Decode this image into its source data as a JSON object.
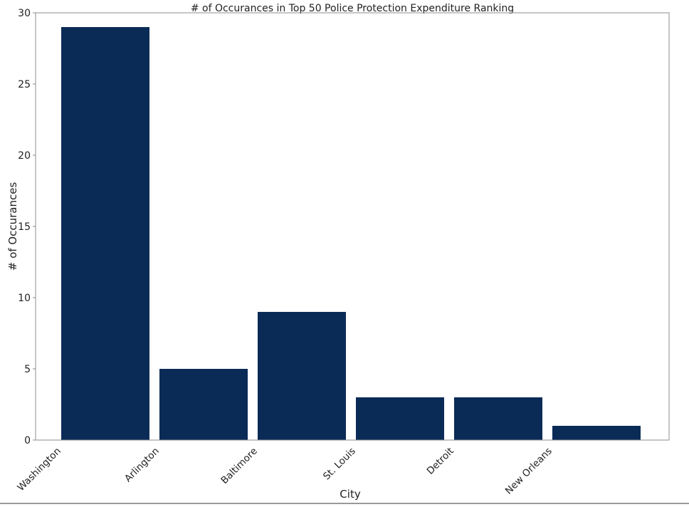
{
  "chart_data": {
    "type": "bar",
    "title": "# of Occurances in Top 50 Police Protection Expenditure Ranking",
    "xlabel": "City",
    "ylabel": "# of Occurances",
    "categories": [
      "Washington",
      "Arlington",
      "Baltimore",
      "St. Louis",
      "Detroit",
      "New Orleans"
    ],
    "values": [
      29,
      5,
      9,
      3,
      3,
      1
    ],
    "ylim": [
      0,
      30
    ],
    "yticks": [
      0,
      5,
      10,
      15,
      20,
      25,
      30
    ],
    "grid": false,
    "legend": "none",
    "bar_color": "#0b2b57"
  }
}
